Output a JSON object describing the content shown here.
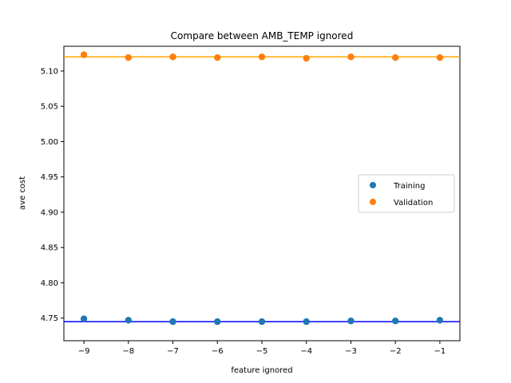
{
  "chart_data": {
    "type": "scatter",
    "title": "Compare between AMB_TEMP ignored",
    "xlabel": "feature ignored",
    "ylabel": "ave cost",
    "xlim": [
      -9.45,
      -0.55
    ],
    "ylim": [
      4.718,
      5.135
    ],
    "xticks": [
      -9,
      -8,
      -7,
      -6,
      -5,
      -4,
      -3,
      -2,
      -1
    ],
    "xtick_labels": [
      "−9",
      "−8",
      "−7",
      "−6",
      "−5",
      "−4",
      "−3",
      "−2",
      "−1"
    ],
    "yticks": [
      4.75,
      4.8,
      4.85,
      4.9,
      4.95,
      5.0,
      5.05,
      5.1
    ],
    "ytick_labels": [
      "4.75",
      "4.80",
      "4.85",
      "4.90",
      "4.95",
      "5.00",
      "5.05",
      "5.10"
    ],
    "x": [
      -9,
      -8,
      -7,
      -6,
      -5,
      -4,
      -3,
      -2,
      -1
    ],
    "series": [
      {
        "name": "Training",
        "color": "#1f77b4",
        "values": [
          4.749,
          4.747,
          4.745,
          4.745,
          4.745,
          4.745,
          4.746,
          4.746,
          4.747
        ]
      },
      {
        "name": "Validation",
        "color": "#ff7f0e",
        "values": [
          5.123,
          5.119,
          5.12,
          5.119,
          5.12,
          5.118,
          5.12,
          5.119,
          5.119
        ]
      }
    ],
    "hlines": [
      {
        "value": 4.745,
        "color": "#0000ff"
      },
      {
        "value": 5.12,
        "color": "#ffa500"
      }
    ],
    "legend": {
      "position": "center-right"
    },
    "grid": false
  }
}
